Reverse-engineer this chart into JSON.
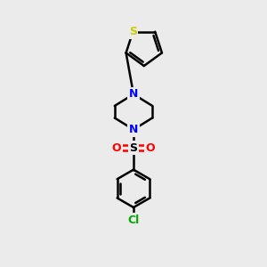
{
  "background_color": "#ebebeb",
  "bond_color": "#000000",
  "bond_width": 1.8,
  "atom_colors": {
    "S_thio": "#cccc00",
    "S_sulfonyl": "#000000",
    "N": "#0000ff",
    "O": "#ff0000",
    "Cl": "#00aa00",
    "C": "#000000"
  },
  "font_size": 9,
  "figsize": [
    3.0,
    3.0
  ],
  "dpi": 100
}
